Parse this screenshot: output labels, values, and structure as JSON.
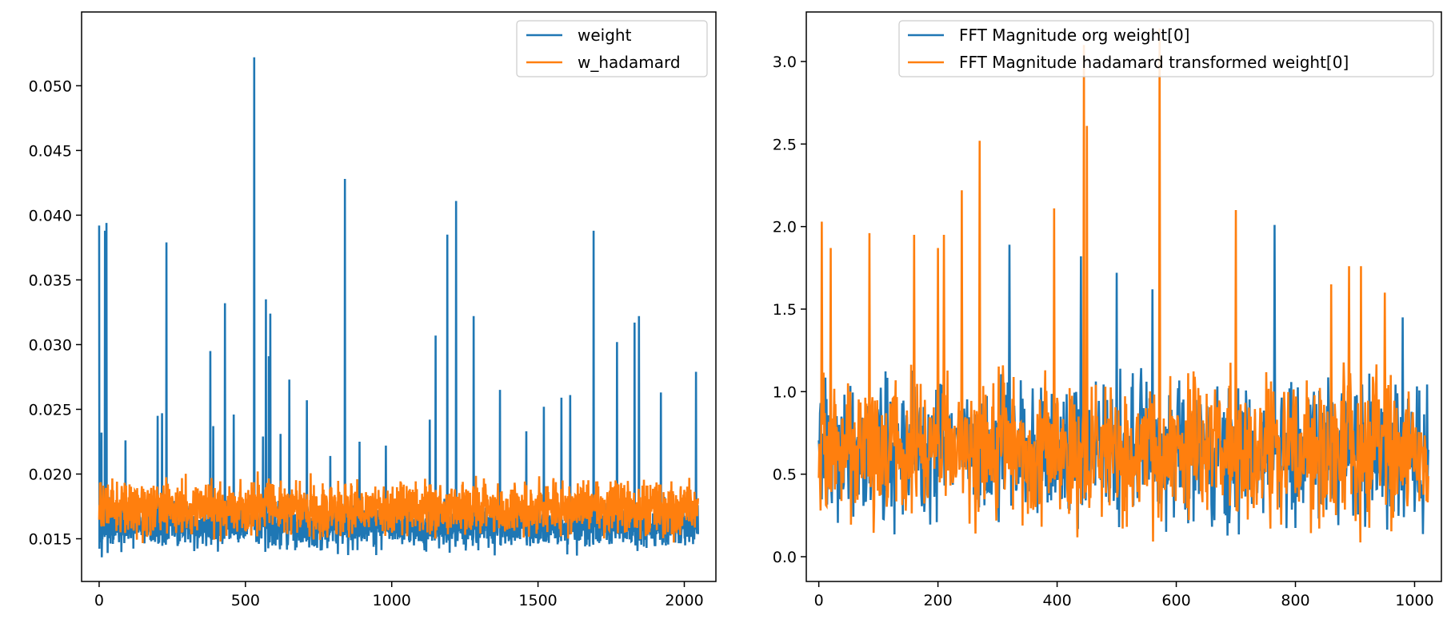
{
  "chart_data": [
    {
      "type": "line",
      "title": "",
      "xlabel": "",
      "ylabel": "",
      "xlim": [
        -60,
        2108
      ],
      "ylim": [
        0.0117,
        0.0557
      ],
      "xticks": [
        0,
        500,
        1000,
        1500,
        2000
      ],
      "xtick_labels": [
        "0",
        "500",
        "1000",
        "1500",
        "2000"
      ],
      "yticks": [
        0.015,
        0.02,
        0.025,
        0.03,
        0.035,
        0.04,
        0.045,
        0.05
      ],
      "ytick_labels": [
        "0.015",
        "0.020",
        "0.025",
        "0.030",
        "0.035",
        "0.040",
        "0.045",
        "0.050"
      ],
      "legend_position": "top-right",
      "series": [
        {
          "name": "weight",
          "color": "#1f77b4",
          "n_points": 2048,
          "baseline_range": [
            0.0135,
            0.0185
          ],
          "peaks": [
            {
              "x": 0,
              "y": 0.0392
            },
            {
              "x": 8,
              "y": 0.0232
            },
            {
              "x": 20,
              "y": 0.0388
            },
            {
              "x": 25,
              "y": 0.0394
            },
            {
              "x": 90,
              "y": 0.0226
            },
            {
              "x": 200,
              "y": 0.0245
            },
            {
              "x": 215,
              "y": 0.0247
            },
            {
              "x": 230,
              "y": 0.0379
            },
            {
              "x": 380,
              "y": 0.0295
            },
            {
              "x": 390,
              "y": 0.0237
            },
            {
              "x": 430,
              "y": 0.0332
            },
            {
              "x": 460,
              "y": 0.0246
            },
            {
              "x": 530,
              "y": 0.0522
            },
            {
              "x": 560,
              "y": 0.0229
            },
            {
              "x": 570,
              "y": 0.0335
            },
            {
              "x": 580,
              "y": 0.0291
            },
            {
              "x": 585,
              "y": 0.0324
            },
            {
              "x": 620,
              "y": 0.0231
            },
            {
              "x": 650,
              "y": 0.0273
            },
            {
              "x": 710,
              "y": 0.0257
            },
            {
              "x": 790,
              "y": 0.0214
            },
            {
              "x": 840,
              "y": 0.0428
            },
            {
              "x": 890,
              "y": 0.0225
            },
            {
              "x": 980,
              "y": 0.0222
            },
            {
              "x": 1130,
              "y": 0.0242
            },
            {
              "x": 1150,
              "y": 0.0307
            },
            {
              "x": 1190,
              "y": 0.0385
            },
            {
              "x": 1220,
              "y": 0.0411
            },
            {
              "x": 1280,
              "y": 0.0322
            },
            {
              "x": 1370,
              "y": 0.0265
            },
            {
              "x": 1460,
              "y": 0.0233
            },
            {
              "x": 1520,
              "y": 0.0252
            },
            {
              "x": 1580,
              "y": 0.0259
            },
            {
              "x": 1610,
              "y": 0.0261
            },
            {
              "x": 1690,
              "y": 0.0388
            },
            {
              "x": 1770,
              "y": 0.0302
            },
            {
              "x": 1830,
              "y": 0.0317
            },
            {
              "x": 1845,
              "y": 0.0322
            },
            {
              "x": 1920,
              "y": 0.0263
            },
            {
              "x": 2040,
              "y": 0.0279
            }
          ]
        },
        {
          "name": "w_hadamard",
          "color": "#ff7f0e",
          "n_points": 2048,
          "baseline_range": [
            0.0145,
            0.0203
          ]
        }
      ]
    },
    {
      "type": "line",
      "title": "",
      "xlabel": "",
      "ylabel": "",
      "xlim": [
        -21,
        1045
      ],
      "ylim": [
        -0.15,
        3.3
      ],
      "xticks": [
        0,
        200,
        400,
        600,
        800,
        1000
      ],
      "xtick_labels": [
        "0",
        "200",
        "400",
        "600",
        "800",
        "1000"
      ],
      "yticks": [
        0.0,
        0.5,
        1.0,
        1.5,
        2.0,
        2.5,
        3.0
      ],
      "ytick_labels": [
        "0.0",
        "0.5",
        "1.0",
        "1.5",
        "2.0",
        "2.5",
        "3.0"
      ],
      "legend_position": "top-right",
      "series": [
        {
          "name": "FFT Magnitude org weight[0]",
          "color": "#1f77b4",
          "n_points": 1024,
          "baseline_range": [
            0.05,
            1.25
          ],
          "peaks": [
            {
              "x": 320,
              "y": 1.89
            },
            {
              "x": 440,
              "y": 1.82
            },
            {
              "x": 500,
              "y": 1.72
            },
            {
              "x": 560,
              "y": 1.62
            },
            {
              "x": 765,
              "y": 2.01
            },
            {
              "x": 980,
              "y": 1.45
            }
          ]
        },
        {
          "name": "FFT Magnitude hadamard transformed weight[0]",
          "color": "#ff7f0e",
          "n_points": 1024,
          "baseline_range": [
            0.05,
            1.25
          ],
          "peaks": [
            {
              "x": 5,
              "y": 2.03
            },
            {
              "x": 20,
              "y": 1.87
            },
            {
              "x": 85,
              "y": 1.96
            },
            {
              "x": 160,
              "y": 1.95
            },
            {
              "x": 200,
              "y": 1.87
            },
            {
              "x": 210,
              "y": 1.95
            },
            {
              "x": 240,
              "y": 2.22
            },
            {
              "x": 270,
              "y": 2.52
            },
            {
              "x": 395,
              "y": 2.11
            },
            {
              "x": 445,
              "y": 3.1
            },
            {
              "x": 450,
              "y": 2.61
            },
            {
              "x": 572,
              "y": 3.2
            },
            {
              "x": 700,
              "y": 2.1
            },
            {
              "x": 860,
              "y": 1.65
            },
            {
              "x": 890,
              "y": 1.76
            },
            {
              "x": 910,
              "y": 1.76
            },
            {
              "x": 950,
              "y": 1.6
            }
          ]
        }
      ]
    }
  ]
}
